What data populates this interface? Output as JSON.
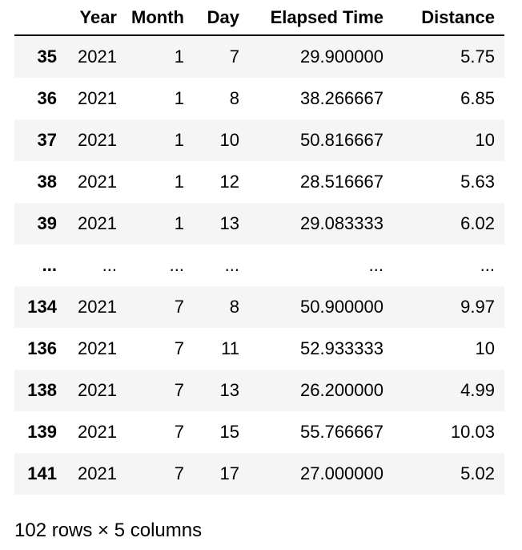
{
  "table": {
    "columns": [
      "Year",
      "Month",
      "Day",
      "Elapsed Time",
      "Distance"
    ],
    "rows": [
      {
        "index": "35",
        "cells": [
          "2021",
          "1",
          "7",
          "29.900000",
          "5.75"
        ]
      },
      {
        "index": "36",
        "cells": [
          "2021",
          "1",
          "8",
          "38.266667",
          "6.85"
        ]
      },
      {
        "index": "37",
        "cells": [
          "2021",
          "1",
          "10",
          "50.816667",
          "10"
        ]
      },
      {
        "index": "38",
        "cells": [
          "2021",
          "1",
          "12",
          "28.516667",
          "5.63"
        ]
      },
      {
        "index": "39",
        "cells": [
          "2021",
          "1",
          "13",
          "29.083333",
          "6.02"
        ]
      },
      {
        "index": "...",
        "cells": [
          "...",
          "...",
          "...",
          "...",
          "..."
        ]
      },
      {
        "index": "134",
        "cells": [
          "2021",
          "7",
          "8",
          "50.900000",
          "9.97"
        ]
      },
      {
        "index": "136",
        "cells": [
          "2021",
          "7",
          "11",
          "52.933333",
          "10"
        ]
      },
      {
        "index": "138",
        "cells": [
          "2021",
          "7",
          "13",
          "26.200000",
          "4.99"
        ]
      },
      {
        "index": "139",
        "cells": [
          "2021",
          "7",
          "15",
          "55.766667",
          "10.03"
        ]
      },
      {
        "index": "141",
        "cells": [
          "2021",
          "7",
          "17",
          "27.000000",
          "5.02"
        ]
      }
    ]
  },
  "footer": {
    "shape_text": "102 rows × 5 columns"
  },
  "colors": {
    "striped_row": "#f5f5f5",
    "header_rule": "#000000"
  }
}
